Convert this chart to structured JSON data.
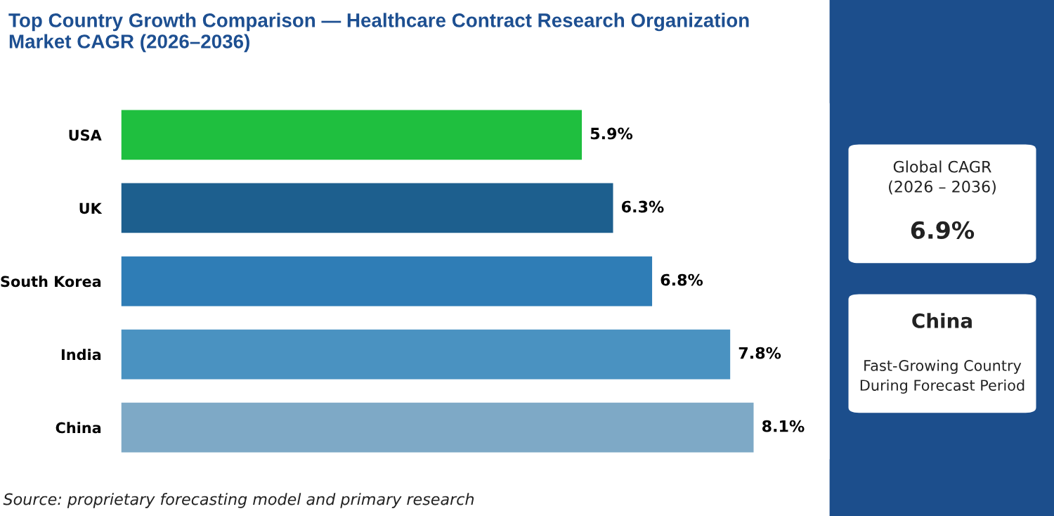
{
  "chart_data": {
    "type": "bar",
    "orientation": "horizontal",
    "title": "Top Country Growth Comparison — Healthcare Contract Research Organization\nMarket CAGR (2026–2036)",
    "categories": [
      "USA",
      "UK",
      "South Korea",
      "India",
      "China"
    ],
    "values": [
      5.9,
      6.3,
      6.8,
      7.8,
      8.1
    ],
    "colors": [
      "#1fbf3f",
      "#1d5f8e",
      "#2f7db6",
      "#4a92c1",
      "#7ea9c6"
    ],
    "value_labels": [
      "5.9%",
      "6.3%",
      "6.8%",
      "7.8%",
      "8.1%"
    ],
    "grid": false,
    "legend": false,
    "annotations": [
      "Source: proprietary forecasting model and primary research",
      "Global CAGR\n(2026 – 2036)",
      "6.9%",
      "China",
      "Fast-Growing Country\nDuring Forecast Period"
    ]
  }
}
